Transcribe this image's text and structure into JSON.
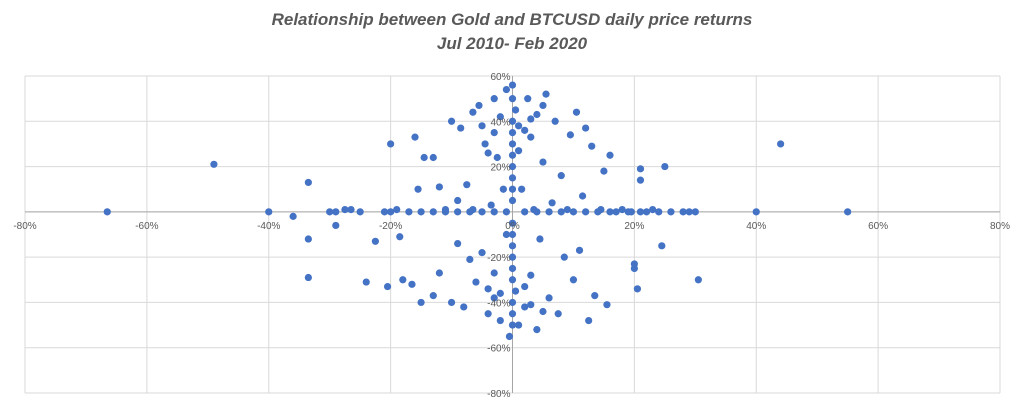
{
  "chart_data": {
    "type": "scatter",
    "title": "Relationship between Gold and BTCUSD daily price returns",
    "subtitle": "Jul 2010- Feb 2020",
    "xlabel": "",
    "ylabel": "",
    "xlim": [
      -0.8,
      0.8
    ],
    "ylim": [
      -0.8,
      0.6
    ],
    "x_ticks": [
      -0.8,
      -0.6,
      -0.4,
      -0.2,
      0,
      0.2,
      0.4,
      0.6,
      0.8
    ],
    "y_ticks": [
      -0.8,
      -0.6,
      -0.4,
      -0.2,
      0,
      0.2,
      0.4,
      0.6
    ],
    "x_tick_labels": [
      "-80%",
      "-60%",
      "-40%",
      "-20%",
      "0%",
      "20%",
      "40%",
      "60%",
      "80%"
    ],
    "y_tick_labels": [
      "-80%",
      "-60%",
      "-40%",
      "-20%",
      "0%",
      "20%",
      "40%",
      "60%"
    ],
    "grid": true,
    "legend": "none",
    "marker_color": "#4472C4",
    "series": [
      {
        "points": [
          [
            -0.665,
            0.0
          ],
          [
            -0.49,
            0.21
          ],
          [
            -0.4,
            0.0
          ],
          [
            -0.36,
            -0.02
          ],
          [
            -0.335,
            0.13
          ],
          [
            -0.335,
            -0.12
          ],
          [
            -0.335,
            -0.29
          ],
          [
            -0.3,
            0.0
          ],
          [
            -0.29,
            0.0
          ],
          [
            -0.29,
            -0.06
          ],
          [
            -0.275,
            0.01
          ],
          [
            -0.265,
            0.01
          ],
          [
            -0.25,
            0.0
          ],
          [
            -0.24,
            -0.31
          ],
          [
            -0.225,
            -0.13
          ],
          [
            -0.21,
            0.0
          ],
          [
            -0.205,
            -0.33
          ],
          [
            -0.2,
            0.3
          ],
          [
            -0.19,
            0.01
          ],
          [
            -0.185,
            -0.11
          ],
          [
            -0.18,
            -0.3
          ],
          [
            -0.165,
            -0.32
          ],
          [
            -0.16,
            0.33
          ],
          [
            -0.155,
            0.1
          ],
          [
            -0.15,
            -0.4
          ],
          [
            -0.145,
            0.24
          ],
          [
            -0.13,
            0.24
          ],
          [
            -0.13,
            -0.37
          ],
          [
            -0.12,
            0.11
          ],
          [
            -0.12,
            -0.27
          ],
          [
            -0.11,
            0.01
          ],
          [
            -0.1,
            0.4
          ],
          [
            -0.1,
            -0.4
          ],
          [
            -0.09,
            0.05
          ],
          [
            -0.09,
            -0.14
          ],
          [
            -0.085,
            0.37
          ],
          [
            -0.08,
            -0.42
          ],
          [
            -0.075,
            0.12
          ],
          [
            -0.07,
            -0.21
          ],
          [
            -0.065,
            0.01
          ],
          [
            -0.065,
            0.44
          ],
          [
            -0.06,
            -0.31
          ],
          [
            -0.055,
            0.47
          ],
          [
            -0.05,
            -0.18
          ],
          [
            -0.045,
            0.3
          ],
          [
            -0.04,
            -0.45
          ],
          [
            -0.035,
            0.03
          ],
          [
            -0.03,
            0.5
          ],
          [
            -0.03,
            -0.38
          ],
          [
            -0.025,
            0.24
          ],
          [
            -0.02,
            -0.48
          ],
          [
            -0.015,
            0.1
          ],
          [
            -0.01,
            0.54
          ],
          [
            -0.01,
            -0.1
          ],
          [
            -0.005,
            -0.55
          ],
          [
            0.0,
            0.56
          ],
          [
            0.0,
            0.2
          ],
          [
            0.0,
            -0.2
          ],
          [
            0.005,
            0.45
          ],
          [
            0.005,
            -0.35
          ],
          [
            0.01,
            0.38
          ],
          [
            0.01,
            -0.5
          ],
          [
            0.015,
            0.1
          ],
          [
            0.02,
            -0.42
          ],
          [
            0.025,
            0.5
          ],
          [
            0.03,
            0.33
          ],
          [
            0.03,
            -0.28
          ],
          [
            0.035,
            0.01
          ],
          [
            0.04,
            0.43
          ],
          [
            0.04,
            -0.52
          ],
          [
            0.045,
            -0.12
          ],
          [
            0.05,
            0.22
          ],
          [
            0.055,
            0.52
          ],
          [
            0.06,
            -0.38
          ],
          [
            0.065,
            0.04
          ],
          [
            0.07,
            0.4
          ],
          [
            0.075,
            -0.45
          ],
          [
            0.08,
            0.16
          ],
          [
            0.085,
            -0.2
          ],
          [
            0.09,
            0.01
          ],
          [
            0.095,
            0.34
          ],
          [
            0.1,
            -0.3
          ],
          [
            0.105,
            0.44
          ],
          [
            0.11,
            -0.17
          ],
          [
            0.115,
            0.07
          ],
          [
            0.12,
            0.37
          ],
          [
            0.125,
            -0.48
          ],
          [
            0.13,
            0.29
          ],
          [
            0.135,
            -0.37
          ],
          [
            0.145,
            0.01
          ],
          [
            0.15,
            0.18
          ],
          [
            0.155,
            -0.41
          ],
          [
            0.16,
            0.25
          ],
          [
            0.17,
            0.0
          ],
          [
            0.18,
            0.01
          ],
          [
            0.195,
            0.0
          ],
          [
            0.2,
            -0.23
          ],
          [
            0.2,
            -0.25
          ],
          [
            0.205,
            -0.34
          ],
          [
            0.21,
            0.19
          ],
          [
            0.21,
            0.14
          ],
          [
            0.22,
            0.0
          ],
          [
            0.23,
            0.01
          ],
          [
            0.24,
            0.0
          ],
          [
            0.245,
            -0.15
          ],
          [
            0.25,
            0.2
          ],
          [
            0.26,
            0.0
          ],
          [
            0.28,
            0.0
          ],
          [
            0.29,
            0.0
          ],
          [
            0.3,
            0.0
          ],
          [
            0.305,
            -0.3
          ],
          [
            0.4,
            0.0
          ],
          [
            0.44,
            0.3
          ],
          [
            0.55,
            0.0
          ],
          [
            -0.2,
            0.0
          ],
          [
            -0.17,
            0.0
          ],
          [
            -0.15,
            0.0
          ],
          [
            -0.13,
            0.0
          ],
          [
            -0.11,
            0.0
          ],
          [
            -0.09,
            0.0
          ],
          [
            -0.07,
            0.0
          ],
          [
            -0.05,
            0.0
          ],
          [
            -0.03,
            0.0
          ],
          [
            -0.01,
            0.0
          ],
          [
            0.02,
            0.0
          ],
          [
            0.04,
            0.0
          ],
          [
            0.06,
            0.0
          ],
          [
            0.08,
            0.0
          ],
          [
            0.1,
            0.0
          ],
          [
            0.12,
            0.0
          ],
          [
            0.14,
            0.0
          ],
          [
            0.16,
            0.0
          ],
          [
            0.19,
            0.0
          ],
          [
            0.21,
            0.0
          ],
          [
            0.0,
            0.05
          ],
          [
            0.0,
            0.1
          ],
          [
            0.0,
            0.15
          ],
          [
            0.0,
            0.25
          ],
          [
            0.0,
            0.3
          ],
          [
            0.0,
            0.35
          ],
          [
            0.0,
            0.4
          ],
          [
            0.0,
            0.5
          ],
          [
            0.0,
            -0.05
          ],
          [
            0.0,
            -0.1
          ],
          [
            0.0,
            -0.15
          ],
          [
            0.0,
            -0.25
          ],
          [
            0.0,
            -0.3
          ],
          [
            0.0,
            -0.4
          ],
          [
            0.0,
            -0.45
          ],
          [
            0.0,
            -0.5
          ],
          [
            0.01,
            0.27
          ],
          [
            0.02,
            0.36
          ],
          [
            0.03,
            0.41
          ],
          [
            0.05,
            0.47
          ],
          [
            -0.02,
            0.42
          ],
          [
            -0.03,
            0.35
          ],
          [
            -0.04,
            0.26
          ],
          [
            -0.05,
            0.38
          ],
          [
            0.02,
            -0.33
          ],
          [
            0.03,
            -0.41
          ],
          [
            0.05,
            -0.44
          ],
          [
            -0.02,
            -0.36
          ],
          [
            -0.03,
            -0.27
          ],
          [
            -0.04,
            -0.34
          ]
        ]
      }
    ]
  }
}
